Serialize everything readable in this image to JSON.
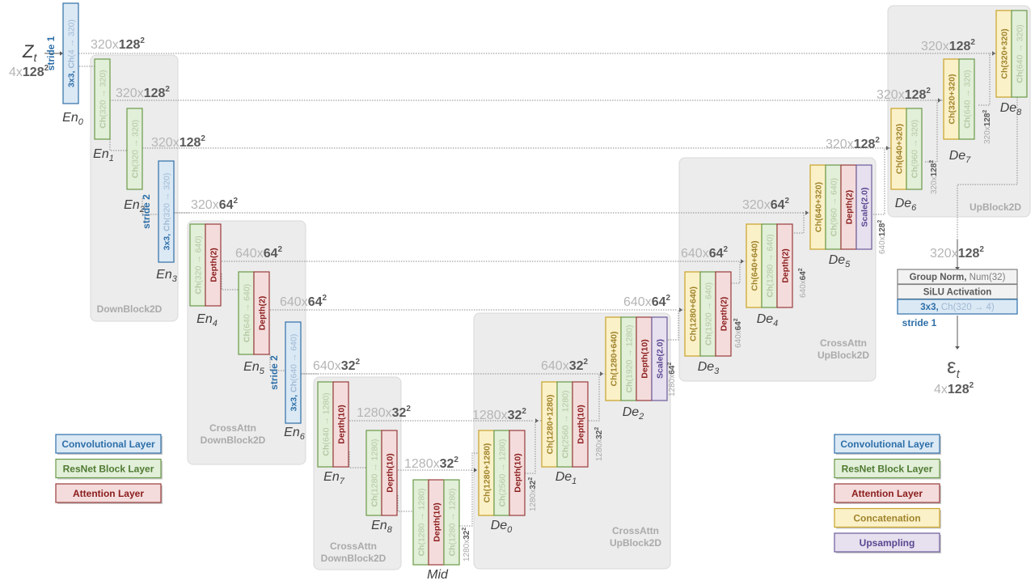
{
  "input": {
    "symbol": "Z",
    "sub": "t",
    "shape_prefix": "4x",
    "shape_bold": "128",
    "shape_sup": "2"
  },
  "output": {
    "symbol": "ε",
    "sub": "t",
    "shape_prefix": "4x",
    "shape_bold": "128",
    "shape_sup": "2"
  },
  "groups": [
    {
      "id": "g-down",
      "line1": "",
      "line2": "DownBlock2D"
    },
    {
      "id": "g-down-ca1",
      "line1": "CrossAttn",
      "line2": "DownBlock2D"
    },
    {
      "id": "g-down-ca2",
      "line1": "CrossAttn",
      "line2": "DownBlock2D"
    },
    {
      "id": "g-up-ca1",
      "line1": "CrossAttn",
      "line2": "UpBlock2D"
    },
    {
      "id": "g-up-ca2",
      "line1": "CrossAttn",
      "line2": "UpBlock2D"
    },
    {
      "id": "g-up",
      "line1": "",
      "line2": "UpBlock2D"
    }
  ],
  "dims": [
    {
      "pre": "320x",
      "bold": "128",
      "sup": "2"
    },
    {
      "pre": "320x",
      "bold": "128",
      "sup": "2"
    },
    {
      "pre": "320x",
      "bold": "128",
      "sup": "2"
    },
    {
      "pre": "320x",
      "bold": "64",
      "sup": "2"
    },
    {
      "pre": "640x",
      "bold": "64",
      "sup": "2"
    },
    {
      "pre": "640x",
      "bold": "64",
      "sup": "2"
    },
    {
      "pre": "640x",
      "bold": "32",
      "sup": "2"
    },
    {
      "pre": "1280x",
      "bold": "32",
      "sup": "2"
    },
    {
      "pre": "1280x",
      "bold": "32",
      "sup": "2"
    },
    {
      "pre": "1280x",
      "bold": "32",
      "sup": "2"
    },
    {
      "pre": "640x",
      "bold": "32",
      "sup": "2"
    },
    {
      "pre": "640x",
      "bold": "64",
      "sup": "2"
    },
    {
      "pre": "640x",
      "bold": "64",
      "sup": "2"
    },
    {
      "pre": "320x",
      "bold": "64",
      "sup": "2"
    },
    {
      "pre": "320x",
      "bold": "128",
      "sup": "2"
    },
    {
      "pre": "320x",
      "bold": "128",
      "sup": "2"
    },
    {
      "pre": "320x",
      "bold": "128",
      "sup": "2"
    },
    {
      "pre": "320x",
      "bold": "128",
      "sup": "2"
    }
  ],
  "small_dims": [
    {
      "pre": "1280x",
      "bold": "32",
      "sup": "2"
    },
    {
      "pre": "1280x",
      "bold": "32",
      "sup": "2"
    },
    {
      "pre": "1280x",
      "bold": "32",
      "sup": "2"
    },
    {
      "pre": "1280x",
      "bold": "64",
      "sup": "2"
    },
    {
      "pre": "640x",
      "bold": "64",
      "sup": "2"
    },
    {
      "pre": "640x",
      "bold": "64",
      "sup": "2"
    },
    {
      "pre": "640x",
      "bold": "128",
      "sup": "2"
    },
    {
      "pre": "320x",
      "bold": "128",
      "sup": "2"
    },
    {
      "pre": "320x",
      "bold": "128",
      "sup": "2"
    }
  ],
  "blocks": [
    {
      "id": "en0",
      "name": "En",
      "sub": "0",
      "stride": "stride 1",
      "layers": [
        {
          "kind": "conv",
          "b": "3x3, ",
          "t": "Ch",
          "g": "(4 → 320)"
        }
      ]
    },
    {
      "id": "en1",
      "name": "En",
      "sub": "1",
      "layers": [
        {
          "kind": "res",
          "b": "",
          "t": "Ch",
          "g": "(320 → 320)"
        }
      ]
    },
    {
      "id": "en2",
      "name": "En",
      "sub": "2",
      "layers": [
        {
          "kind": "res",
          "b": "",
          "t": "Ch",
          "g": "(320 → 320)"
        }
      ]
    },
    {
      "id": "en3",
      "name": "En",
      "sub": "3",
      "stride": "stride 2",
      "layers": [
        {
          "kind": "conv",
          "b": "3x3, ",
          "t": "Ch",
          "g": "(320 → 320)"
        }
      ]
    },
    {
      "id": "en4",
      "name": "En",
      "sub": "4",
      "layers": [
        {
          "kind": "res",
          "b": "",
          "t": "Ch",
          "g": "(320 → 640)"
        },
        {
          "kind": "att",
          "b": "Depth(2)",
          "t": "",
          "g": ""
        }
      ]
    },
    {
      "id": "en5",
      "name": "En",
      "sub": "5",
      "layers": [
        {
          "kind": "res",
          "b": "",
          "t": "Ch",
          "g": "(640 → 640)"
        },
        {
          "kind": "att",
          "b": "Depth(2)",
          "t": "",
          "g": ""
        }
      ]
    },
    {
      "id": "en6",
      "name": "En",
      "sub": "6",
      "stride": "stride 2",
      "layers": [
        {
          "kind": "conv",
          "b": "3x3, ",
          "t": "Ch",
          "g": "(640 → 640)"
        }
      ]
    },
    {
      "id": "en7",
      "name": "En",
      "sub": "7",
      "layers": [
        {
          "kind": "res",
          "b": "",
          "t": "Ch",
          "g": "(640 → 1280)"
        },
        {
          "kind": "att",
          "b": "Depth(10)",
          "t": "",
          "g": ""
        }
      ]
    },
    {
      "id": "en8",
      "name": "En",
      "sub": "8",
      "layers": [
        {
          "kind": "res",
          "b": "",
          "t": "Ch",
          "g": "(1280 → 1280)"
        },
        {
          "kind": "att",
          "b": "Depth(10)",
          "t": "",
          "g": ""
        }
      ]
    },
    {
      "id": "mid",
      "name": "Mid",
      "sub": "",
      "layers": [
        {
          "kind": "res",
          "b": "",
          "t": "Ch",
          "g": "(1280 → 1280)"
        },
        {
          "kind": "att",
          "b": "Depth(10)",
          "t": "",
          "g": ""
        },
        {
          "kind": "res",
          "b": "",
          "t": "Ch",
          "g": "(1280 → 1280)"
        }
      ]
    },
    {
      "id": "de0",
      "name": "De",
      "sub": "0",
      "layers": [
        {
          "kind": "cat",
          "b": "Ch(1280+1280)",
          "t": "",
          "g": ""
        },
        {
          "kind": "res",
          "b": "",
          "t": "Ch",
          "g": "(2560 → 1280)"
        },
        {
          "kind": "att",
          "b": "Depth(10)",
          "t": "",
          "g": ""
        }
      ]
    },
    {
      "id": "de1",
      "name": "De",
      "sub": "1",
      "layers": [
        {
          "kind": "cat",
          "b": "Ch(1280+1280)",
          "t": "",
          "g": ""
        },
        {
          "kind": "res",
          "b": "",
          "t": "Ch",
          "g": "(2560 → 1280)"
        },
        {
          "kind": "att",
          "b": "Depth(10)",
          "t": "",
          "g": ""
        }
      ]
    },
    {
      "id": "de2",
      "name": "De",
      "sub": "2",
      "layers": [
        {
          "kind": "cat",
          "b": "Ch(1280+640)",
          "t": "",
          "g": ""
        },
        {
          "kind": "res",
          "b": "",
          "t": "Ch",
          "g": "(1920 → 1280)"
        },
        {
          "kind": "att",
          "b": "Depth(10)",
          "t": "",
          "g": ""
        },
        {
          "kind": "ups",
          "b": "Scale(2.0)",
          "t": "",
          "g": ""
        }
      ]
    },
    {
      "id": "de3",
      "name": "De",
      "sub": "3",
      "layers": [
        {
          "kind": "cat",
          "b": "Ch(1280+640)",
          "t": "",
          "g": ""
        },
        {
          "kind": "res",
          "b": "",
          "t": "Ch",
          "g": "(1920 → 640)"
        },
        {
          "kind": "att",
          "b": "Depth(2)",
          "t": "",
          "g": ""
        }
      ]
    },
    {
      "id": "de4",
      "name": "De",
      "sub": "4",
      "layers": [
        {
          "kind": "cat",
          "b": "Ch(640+640)",
          "t": "",
          "g": ""
        },
        {
          "kind": "res",
          "b": "",
          "t": "Ch",
          "g": "(1280 → 640)"
        },
        {
          "kind": "att",
          "b": "Depth(2)",
          "t": "",
          "g": ""
        }
      ]
    },
    {
      "id": "de5",
      "name": "De",
      "sub": "5",
      "layers": [
        {
          "kind": "cat",
          "b": "Ch(640+320)",
          "t": "",
          "g": ""
        },
        {
          "kind": "res",
          "b": "",
          "t": "Ch",
          "g": "(960 → 640)"
        },
        {
          "kind": "att",
          "b": "Depth(2)",
          "t": "",
          "g": ""
        },
        {
          "kind": "ups",
          "b": "Scale(2.0)",
          "t": "",
          "g": ""
        }
      ]
    },
    {
      "id": "de6",
      "name": "De",
      "sub": "6",
      "layers": [
        {
          "kind": "cat",
          "b": "Ch(640+320)",
          "t": "",
          "g": ""
        },
        {
          "kind": "res",
          "b": "",
          "t": "Ch",
          "g": "(960 → 320)"
        }
      ]
    },
    {
      "id": "de7",
      "name": "De",
      "sub": "7",
      "layers": [
        {
          "kind": "cat",
          "b": "Ch(320+320)",
          "t": "",
          "g": ""
        },
        {
          "kind": "res",
          "b": "",
          "t": "Ch",
          "g": "(640 → 320)"
        }
      ]
    },
    {
      "id": "de8",
      "name": "De",
      "sub": "8",
      "layers": [
        {
          "kind": "cat",
          "b": "Ch(320+320)",
          "t": "",
          "g": ""
        },
        {
          "kind": "res",
          "b": "",
          "t": "Ch",
          "g": "(640 → 320)"
        }
      ]
    }
  ],
  "head": {
    "rows": [
      {
        "kind": "norm",
        "b": "Group Norm,",
        "t": " Num(32)"
      },
      {
        "kind": "norm",
        "b": "SiLU Activation",
        "t": ""
      },
      {
        "kind": "conv",
        "b": "3x3,",
        "t": " Ch(320 → 4)"
      }
    ],
    "stride": "stride 1"
  },
  "legend_left": [
    {
      "kind": "conv",
      "label": "Convolutional Layer"
    },
    {
      "kind": "res",
      "label": "ResNet Block Layer"
    },
    {
      "kind": "att",
      "label": "Attention Layer"
    }
  ],
  "legend_right": [
    {
      "kind": "conv",
      "label": "Convolutional Layer"
    },
    {
      "kind": "res",
      "label": "ResNet Block Layer"
    },
    {
      "kind": "att",
      "label": "Attention Layer"
    },
    {
      "kind": "cat",
      "label": "Concatenation"
    },
    {
      "kind": "ups",
      "label": "Upsampling"
    }
  ],
  "colors": {
    "conv": {
      "fill": "#dbe9f5",
      "stroke": "#2e6fa8",
      "text": "#2e6fa8"
    },
    "res": {
      "fill": "#e2efd9",
      "stroke": "#6a9a48",
      "text": "#b3c9a3"
    },
    "att": {
      "fill": "#f4dcdc",
      "stroke": "#9a3b3b",
      "text": "#8b1c1c"
    },
    "cat": {
      "fill": "#fbf1c8",
      "stroke": "#c9a227",
      "text": "#a0842c"
    },
    "ups": {
      "fill": "#e6e0ef",
      "stroke": "#6d5b9a",
      "text": "#5a4790"
    },
    "norm": {
      "fill": "#f2f2f2",
      "stroke": "#808080",
      "text": "#595959"
    }
  }
}
